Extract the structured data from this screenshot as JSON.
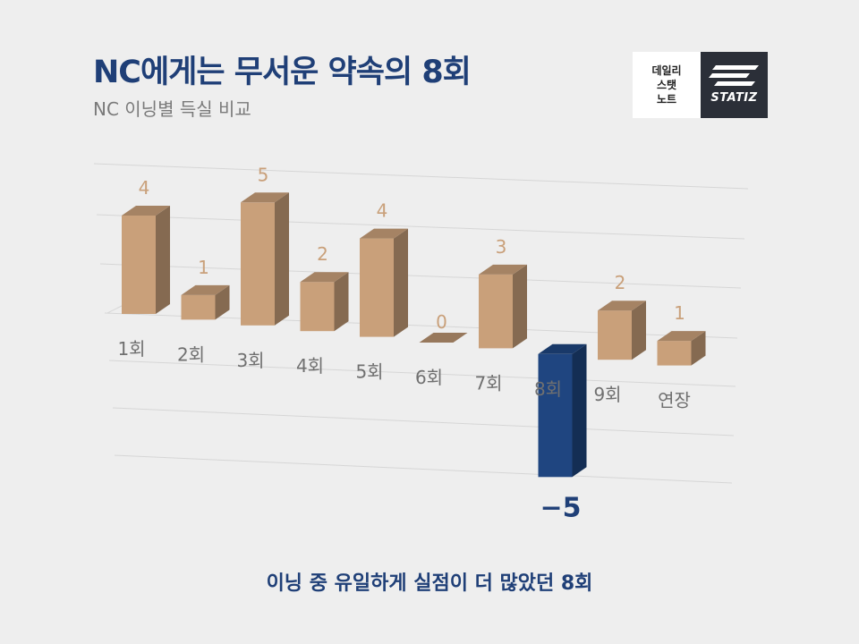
{
  "title": "NC에게는 무서운 약속의 8회",
  "subtitle": "NC 이닝별 득실 비교",
  "logo": {
    "daily_line1": "데일리",
    "daily_line2": "스탯",
    "daily_line3": "노트",
    "statiz": "STATIZ"
  },
  "footer": "이닝 중 유일하게 실점이 더 많았던 8회",
  "colors": {
    "positive_bar": "#c9a07a",
    "negative_bar": "#1f4580",
    "value_label": "#c9a07a",
    "negative_label": "#1f3f77",
    "category_label": "#707070",
    "title": "#1f3f77"
  },
  "chart_data": {
    "type": "bar",
    "style": "3d",
    "categories": [
      "1회",
      "2회",
      "3회",
      "4회",
      "5회",
      "6회",
      "7회",
      "8회",
      "9회",
      "연장"
    ],
    "values": [
      4,
      1,
      5,
      2,
      4,
      0,
      3,
      -5,
      2,
      1
    ],
    "value_labels": [
      "4",
      "1",
      "5",
      "2",
      "4",
      "0",
      "3",
      "−5",
      "2",
      "1"
    ],
    "highlight_index": 7,
    "grid": true
  }
}
